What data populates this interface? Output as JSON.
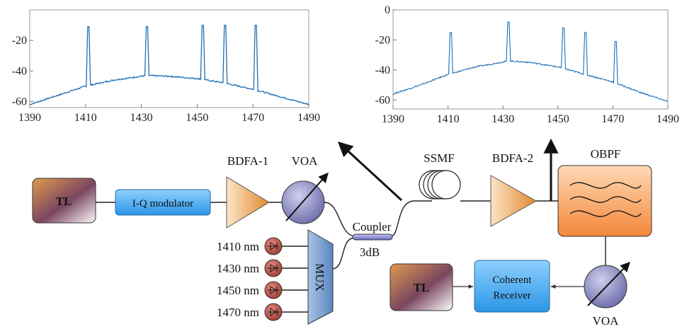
{
  "chart_data": [
    {
      "type": "line",
      "title": "",
      "xlabel": "",
      "ylabel": "",
      "xlim": [
        1390,
        1490
      ],
      "ylim": [
        -64,
        0
      ],
      "x_ticks": [
        "1390",
        "1410",
        "1430",
        "1450",
        "1470",
        "1490"
      ],
      "y_ticks": [
        "-20",
        "-40",
        "-60"
      ],
      "grid": false,
      "series": [
        {
          "color": "#1f6fb5",
          "noise_floor": {
            "x": [
              1390,
              1400,
              1410,
              1420,
              1432,
              1440,
              1450,
              1460,
              1470,
              1480,
              1490
            ],
            "y": [
              -62,
              -56,
              -50,
              -46,
              -43,
              -43.5,
              -45,
              -48,
              -52,
              -57,
              -62
            ]
          },
          "peaks": {
            "x": [
              1411,
              1432,
              1452,
              1460,
              1471
            ],
            "y": [
              -11,
              -11,
              -10,
              -10,
              -10
            ]
          }
        }
      ]
    },
    {
      "type": "line",
      "title": "",
      "xlabel": "",
      "ylabel": "",
      "xlim": [
        1390,
        1490
      ],
      "ylim": [
        -66,
        0
      ],
      "x_ticks": [
        "1390",
        "1410",
        "1430",
        "1450",
        "1470",
        "1490"
      ],
      "y_ticks": [
        "0",
        "-20",
        "-40",
        "-60"
      ],
      "grid": false,
      "series": [
        {
          "color": "#1f6fb5",
          "noise_floor": {
            "x": [
              1390,
              1400,
              1410,
              1420,
              1432,
              1440,
              1450,
              1460,
              1470,
              1480,
              1490
            ],
            "y": [
              -56,
              -50,
              -43,
              -38,
              -34,
              -35,
              -38,
              -43,
              -48,
              -55,
              -61
            ]
          },
          "peaks": {
            "x": [
              1411,
              1432,
              1452,
              1460,
              1471
            ],
            "y": [
              -15,
              -8,
              -12,
              -15,
              -21
            ]
          }
        }
      ]
    }
  ],
  "diagram": {
    "tl_top": "TL",
    "iq_modulator": "I-Q modulator",
    "bdfa1": "BDFA-1",
    "voa_top": "VOA",
    "coupler": "Coupler",
    "coupler_ratio": "3dB",
    "ssmf": "SSMF",
    "bdfa2": "BDFA-2",
    "obpf": "OBPF",
    "mux": "MUX",
    "wavelengths": [
      "1410 nm",
      "1430 nm",
      "1450 nm",
      "1470 nm"
    ],
    "tl_bottom": "TL",
    "coherent_receiver_line1": "Coherent",
    "coherent_receiver_line2": "Receiver",
    "voa_bottom": "VOA"
  }
}
